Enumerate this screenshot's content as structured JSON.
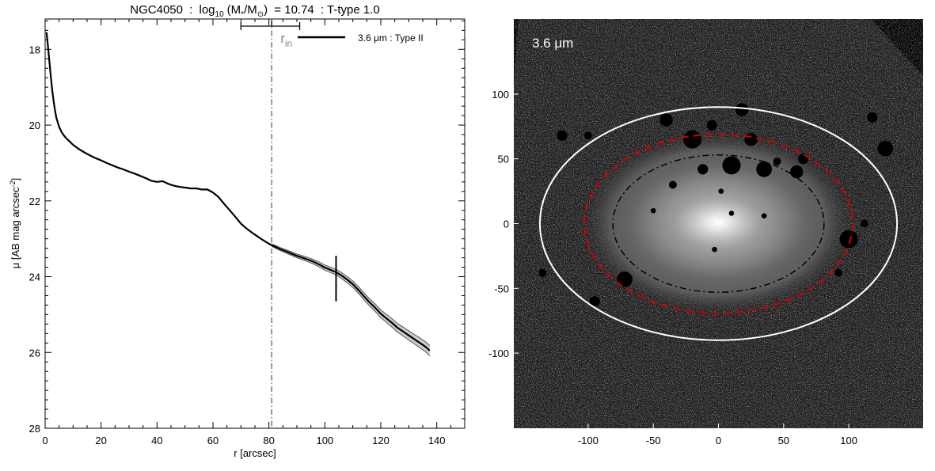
{
  "chart_data": [
    {
      "type": "line",
      "title": "NGC4050 : log₁₀ (M★/M⊙) = 10.74 : T-type 1.0",
      "title_parts": {
        "object": "NGC4050",
        "log_label": "log",
        "log_base": "10",
        "mass_label_open": "(M",
        "star_sub": "*",
        "mass_label_mid": "/M",
        "sun_sub": "⊙",
        "mass_label_close": ")",
        "mass_value": "= 10.74",
        "ttype": ": T-type 1.0"
      },
      "xlabel": "r [arcsec]",
      "ylabel": "μ [AB mag arcsec",
      "ylabel_sup": "-2",
      "ylabel_close": "]",
      "xlim": [
        0,
        150
      ],
      "ylim": [
        28,
        17.2
      ],
      "y_inverted": true,
      "xticks": [
        "0",
        "20",
        "40",
        "60",
        "80",
        "100",
        "120",
        "140"
      ],
      "yticks": [
        "18",
        "20",
        "22",
        "24",
        "26",
        "28"
      ],
      "xtick_values": [
        0,
        20,
        40,
        60,
        80,
        100,
        120,
        140
      ],
      "ytick_values": [
        18,
        20,
        22,
        24,
        26,
        28
      ],
      "legend": {
        "label": "3.6 μm : Type II",
        "placement": "top-right"
      },
      "annotation": {
        "label": "r",
        "sub": "in"
      },
      "break_radius": 81,
      "rin_range": [
        70,
        91
      ],
      "rin_center": 81,
      "break_marker": {
        "x": 104,
        "y_low": 23.45,
        "y_high": 24.65
      },
      "series": [
        {
          "x": [
            0.5,
            1,
            1.5,
            2,
            2.5,
            3,
            3.5,
            4,
            5,
            6,
            7,
            8,
            10,
            12,
            14,
            16,
            18,
            20,
            22,
            24,
            26,
            28,
            30,
            32,
            34,
            36,
            38,
            40,
            42,
            44,
            46,
            48,
            50,
            52,
            54,
            56,
            58,
            60,
            62,
            64,
            66,
            68,
            70,
            72,
            74,
            76,
            78,
            80,
            81,
            82,
            84,
            86,
            88,
            90,
            92,
            94,
            96,
            98,
            100,
            102,
            104,
            106,
            108,
            110,
            112,
            114,
            116,
            118,
            120,
            122,
            124,
            126,
            128,
            130,
            132,
            134,
            136,
            137.5
          ],
          "y": [
            17.55,
            17.9,
            18.3,
            18.7,
            19.05,
            19.35,
            19.6,
            19.8,
            20.05,
            20.2,
            20.3,
            20.38,
            20.52,
            20.63,
            20.72,
            20.8,
            20.87,
            20.93,
            21.0,
            21.06,
            21.12,
            21.17,
            21.23,
            21.28,
            21.34,
            21.4,
            21.47,
            21.5,
            21.48,
            21.55,
            21.6,
            21.63,
            21.65,
            21.67,
            21.67,
            21.7,
            21.7,
            21.78,
            21.9,
            22.08,
            22.25,
            22.42,
            22.6,
            22.73,
            22.84,
            22.94,
            23.04,
            23.13,
            23.17,
            23.2,
            23.27,
            23.33,
            23.39,
            23.45,
            23.5,
            23.55,
            23.61,
            23.68,
            23.76,
            23.82,
            23.88,
            23.97,
            24.08,
            24.2,
            24.35,
            24.52,
            24.68,
            24.82,
            24.98,
            25.1,
            25.22,
            25.35,
            25.45,
            25.55,
            25.65,
            25.75,
            25.85,
            25.95
          ]
        }
      ]
    },
    {
      "type": "image",
      "band_label": "3.6 μm",
      "xticks": [
        "-100",
        "-50",
        "0",
        "50",
        "100"
      ],
      "yticks": [
        "100",
        "50",
        "0",
        "-50",
        "-100"
      ],
      "xtick_values": [
        -100,
        -50,
        0,
        50,
        100
      ],
      "ytick_values": [
        100,
        50,
        0,
        -50,
        -100
      ],
      "xlim": [
        -157,
        157
      ],
      "ylim": [
        -158,
        158
      ],
      "ellipses": [
        {
          "name": "outer",
          "a": 137,
          "b": 90,
          "style": "solid",
          "color": "#ffffff"
        },
        {
          "name": "break",
          "a": 103,
          "b": 69,
          "style": "dashed",
          "color": "#cc0000"
        },
        {
          "name": "inner",
          "a": 81,
          "b": 53,
          "style": "dashdot",
          "color": "#000000"
        }
      ]
    }
  ]
}
